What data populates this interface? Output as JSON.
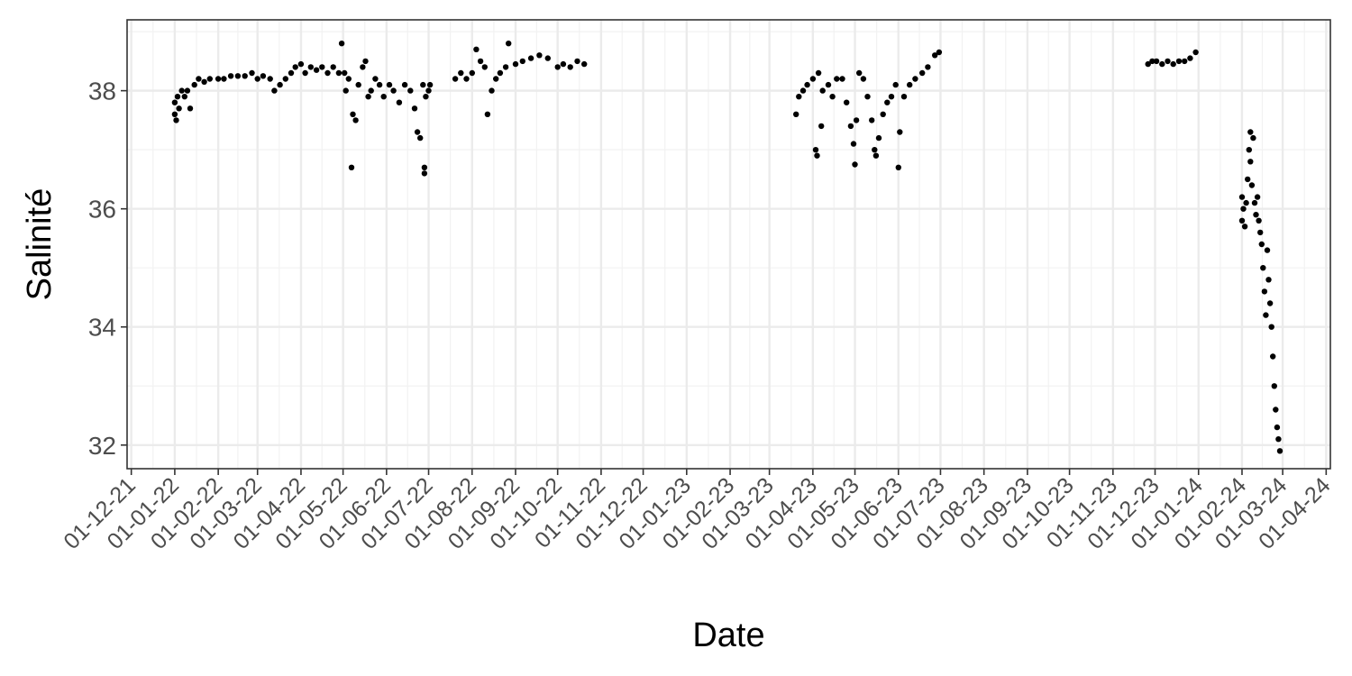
{
  "chart_data": {
    "type": "scatter",
    "title": "",
    "xlabel": "Date",
    "ylabel": "Salinité",
    "x_axis_kind": "date",
    "xlim": [
      "2021-11-28",
      "2024-04-04"
    ],
    "ylim": [
      31.6,
      39.2
    ],
    "y_ticks": [
      32,
      34,
      36,
      38
    ],
    "x_ticks": [
      {
        "date": "2021-12-01",
        "label": "01-12-21"
      },
      {
        "date": "2022-01-01",
        "label": "01-01-22"
      },
      {
        "date": "2022-02-01",
        "label": "01-02-22"
      },
      {
        "date": "2022-03-01",
        "label": "01-03-22"
      },
      {
        "date": "2022-04-01",
        "label": "01-04-22"
      },
      {
        "date": "2022-05-01",
        "label": "01-05-22"
      },
      {
        "date": "2022-06-01",
        "label": "01-06-22"
      },
      {
        "date": "2022-07-01",
        "label": "01-07-22"
      },
      {
        "date": "2022-08-01",
        "label": "01-08-22"
      },
      {
        "date": "2022-09-01",
        "label": "01-09-22"
      },
      {
        "date": "2022-10-01",
        "label": "01-10-22"
      },
      {
        "date": "2022-11-01",
        "label": "01-11-22"
      },
      {
        "date": "2022-12-01",
        "label": "01-12-22"
      },
      {
        "date": "2023-01-01",
        "label": "01-01-23"
      },
      {
        "date": "2023-02-01",
        "label": "01-02-23"
      },
      {
        "date": "2023-03-01",
        "label": "01-03-23"
      },
      {
        "date": "2023-04-01",
        "label": "01-04-23"
      },
      {
        "date": "2023-05-01",
        "label": "01-05-23"
      },
      {
        "date": "2023-06-01",
        "label": "01-06-23"
      },
      {
        "date": "2023-07-01",
        "label": "01-07-23"
      },
      {
        "date": "2023-08-01",
        "label": "01-08-23"
      },
      {
        "date": "2023-09-01",
        "label": "01-09-23"
      },
      {
        "date": "2023-10-01",
        "label": "01-10-23"
      },
      {
        "date": "2023-11-01",
        "label": "01-11-23"
      },
      {
        "date": "2023-12-01",
        "label": "01-12-23"
      },
      {
        "date": "2024-01-01",
        "label": "01-01-24"
      },
      {
        "date": "2024-02-01",
        "label": "01-02-24"
      },
      {
        "date": "2024-03-01",
        "label": "01-03-24"
      },
      {
        "date": "2024-04-01",
        "label": "01-04-24"
      }
    ],
    "grid": true,
    "legend": "none",
    "marker_color": "#000000",
    "series": [
      {
        "points": [
          {
            "x": "2022-01-01",
            "y": 37.6
          },
          {
            "x": "2022-01-01",
            "y": 37.8
          },
          {
            "x": "2022-01-02",
            "y": 37.5
          },
          {
            "x": "2022-01-03",
            "y": 37.9
          },
          {
            "x": "2022-01-04",
            "y": 37.7
          },
          {
            "x": "2022-01-06",
            "y": 38.0
          },
          {
            "x": "2022-01-08",
            "y": 37.9
          },
          {
            "x": "2022-01-10",
            "y": 38.0
          },
          {
            "x": "2022-01-12",
            "y": 37.7
          },
          {
            "x": "2022-01-15",
            "y": 38.1
          },
          {
            "x": "2022-01-18",
            "y": 38.2
          },
          {
            "x": "2022-01-22",
            "y": 38.15
          },
          {
            "x": "2022-01-26",
            "y": 38.2
          },
          {
            "x": "2022-02-01",
            "y": 38.2
          },
          {
            "x": "2022-02-05",
            "y": 38.2
          },
          {
            "x": "2022-02-10",
            "y": 38.25
          },
          {
            "x": "2022-02-15",
            "y": 38.25
          },
          {
            "x": "2022-02-20",
            "y": 38.25
          },
          {
            "x": "2022-02-25",
            "y": 38.3
          },
          {
            "x": "2022-03-01",
            "y": 38.2
          },
          {
            "x": "2022-03-05",
            "y": 38.25
          },
          {
            "x": "2022-03-10",
            "y": 38.2
          },
          {
            "x": "2022-03-13",
            "y": 38.0
          },
          {
            "x": "2022-03-17",
            "y": 38.1
          },
          {
            "x": "2022-03-21",
            "y": 38.2
          },
          {
            "x": "2022-03-25",
            "y": 38.3
          },
          {
            "x": "2022-03-28",
            "y": 38.4
          },
          {
            "x": "2022-04-01",
            "y": 38.45
          },
          {
            "x": "2022-04-04",
            "y": 38.3
          },
          {
            "x": "2022-04-08",
            "y": 38.4
          },
          {
            "x": "2022-04-12",
            "y": 38.35
          },
          {
            "x": "2022-04-16",
            "y": 38.4
          },
          {
            "x": "2022-04-20",
            "y": 38.3
          },
          {
            "x": "2022-04-24",
            "y": 38.4
          },
          {
            "x": "2022-04-28",
            "y": 38.3
          },
          {
            "x": "2022-04-30",
            "y": 38.8
          },
          {
            "x": "2022-05-02",
            "y": 38.3
          },
          {
            "x": "2022-05-03",
            "y": 38.0
          },
          {
            "x": "2022-05-05",
            "y": 38.2
          },
          {
            "x": "2022-05-07",
            "y": 36.7
          },
          {
            "x": "2022-05-08",
            "y": 37.6
          },
          {
            "x": "2022-05-10",
            "y": 37.5
          },
          {
            "x": "2022-05-12",
            "y": 38.1
          },
          {
            "x": "2022-05-15",
            "y": 38.4
          },
          {
            "x": "2022-05-17",
            "y": 38.5
          },
          {
            "x": "2022-05-19",
            "y": 37.9
          },
          {
            "x": "2022-05-21",
            "y": 38.0
          },
          {
            "x": "2022-05-24",
            "y": 38.2
          },
          {
            "x": "2022-05-27",
            "y": 38.1
          },
          {
            "x": "2022-05-30",
            "y": 37.9
          },
          {
            "x": "2022-06-03",
            "y": 38.1
          },
          {
            "x": "2022-06-06",
            "y": 38.0
          },
          {
            "x": "2022-06-10",
            "y": 37.8
          },
          {
            "x": "2022-06-14",
            "y": 38.1
          },
          {
            "x": "2022-06-18",
            "y": 38.0
          },
          {
            "x": "2022-06-21",
            "y": 37.7
          },
          {
            "x": "2022-06-23",
            "y": 37.3
          },
          {
            "x": "2022-06-25",
            "y": 37.2
          },
          {
            "x": "2022-06-27",
            "y": 38.1
          },
          {
            "x": "2022-06-28",
            "y": 36.7
          },
          {
            "x": "2022-06-28",
            "y": 36.6
          },
          {
            "x": "2022-06-29",
            "y": 37.9
          },
          {
            "x": "2022-07-01",
            "y": 38.0
          },
          {
            "x": "2022-07-02",
            "y": 38.1
          },
          {
            "x": "2022-07-20",
            "y": 38.2
          },
          {
            "x": "2022-07-24",
            "y": 38.3
          },
          {
            "x": "2022-07-28",
            "y": 38.2
          },
          {
            "x": "2022-08-01",
            "y": 38.3
          },
          {
            "x": "2022-08-04",
            "y": 38.7
          },
          {
            "x": "2022-08-07",
            "y": 38.5
          },
          {
            "x": "2022-08-10",
            "y": 38.4
          },
          {
            "x": "2022-08-12",
            "y": 37.6
          },
          {
            "x": "2022-08-15",
            "y": 38.0
          },
          {
            "x": "2022-08-18",
            "y": 38.2
          },
          {
            "x": "2022-08-21",
            "y": 38.3
          },
          {
            "x": "2022-08-25",
            "y": 38.4
          },
          {
            "x": "2022-08-27",
            "y": 38.8
          },
          {
            "x": "2022-09-01",
            "y": 38.45
          },
          {
            "x": "2022-09-06",
            "y": 38.5
          },
          {
            "x": "2022-09-12",
            "y": 38.55
          },
          {
            "x": "2022-09-18",
            "y": 38.6
          },
          {
            "x": "2022-09-24",
            "y": 38.55
          },
          {
            "x": "2022-10-01",
            "y": 38.4
          },
          {
            "x": "2022-10-05",
            "y": 38.45
          },
          {
            "x": "2022-10-10",
            "y": 38.4
          },
          {
            "x": "2022-10-15",
            "y": 38.5
          },
          {
            "x": "2022-10-20",
            "y": 38.45
          },
          {
            "x": "2023-03-20",
            "y": 37.6
          },
          {
            "x": "2023-03-22",
            "y": 37.9
          },
          {
            "x": "2023-03-25",
            "y": 38.0
          },
          {
            "x": "2023-03-28",
            "y": 38.1
          },
          {
            "x": "2023-04-01",
            "y": 38.2
          },
          {
            "x": "2023-04-03",
            "y": 37.0
          },
          {
            "x": "2023-04-04",
            "y": 36.9
          },
          {
            "x": "2023-04-05",
            "y": 38.3
          },
          {
            "x": "2023-04-07",
            "y": 37.4
          },
          {
            "x": "2023-04-08",
            "y": 38.0
          },
          {
            "x": "2023-04-12",
            "y": 38.1
          },
          {
            "x": "2023-04-15",
            "y": 37.9
          },
          {
            "x": "2023-04-18",
            "y": 38.2
          },
          {
            "x": "2023-04-22",
            "y": 38.2
          },
          {
            "x": "2023-04-25",
            "y": 37.8
          },
          {
            "x": "2023-04-28",
            "y": 37.4
          },
          {
            "x": "2023-04-30",
            "y": 37.1
          },
          {
            "x": "2023-05-01",
            "y": 36.75
          },
          {
            "x": "2023-05-02",
            "y": 37.5
          },
          {
            "x": "2023-05-04",
            "y": 38.3
          },
          {
            "x": "2023-05-07",
            "y": 38.2
          },
          {
            "x": "2023-05-10",
            "y": 37.9
          },
          {
            "x": "2023-05-13",
            "y": 37.5
          },
          {
            "x": "2023-05-15",
            "y": 37.0
          },
          {
            "x": "2023-05-16",
            "y": 36.9
          },
          {
            "x": "2023-05-18",
            "y": 37.2
          },
          {
            "x": "2023-05-21",
            "y": 37.6
          },
          {
            "x": "2023-05-24",
            "y": 37.8
          },
          {
            "x": "2023-05-27",
            "y": 37.9
          },
          {
            "x": "2023-05-30",
            "y": 38.1
          },
          {
            "x": "2023-06-01",
            "y": 36.7
          },
          {
            "x": "2023-06-02",
            "y": 37.3
          },
          {
            "x": "2023-06-05",
            "y": 37.9
          },
          {
            "x": "2023-06-09",
            "y": 38.1
          },
          {
            "x": "2023-06-13",
            "y": 38.2
          },
          {
            "x": "2023-06-18",
            "y": 38.3
          },
          {
            "x": "2023-06-22",
            "y": 38.4
          },
          {
            "x": "2023-06-27",
            "y": 38.6
          },
          {
            "x": "2023-06-30",
            "y": 38.65
          },
          {
            "x": "2023-11-26",
            "y": 38.45
          },
          {
            "x": "2023-11-29",
            "y": 38.5
          },
          {
            "x": "2023-12-02",
            "y": 38.5
          },
          {
            "x": "2023-12-06",
            "y": 38.45
          },
          {
            "x": "2023-12-10",
            "y": 38.5
          },
          {
            "x": "2023-12-14",
            "y": 38.45
          },
          {
            "x": "2023-12-18",
            "y": 38.5
          },
          {
            "x": "2023-12-22",
            "y": 38.5
          },
          {
            "x": "2023-12-26",
            "y": 38.55
          },
          {
            "x": "2023-12-30",
            "y": 38.65
          },
          {
            "x": "2024-02-01",
            "y": 36.2
          },
          {
            "x": "2024-02-01",
            "y": 35.8
          },
          {
            "x": "2024-02-02",
            "y": 36.0
          },
          {
            "x": "2024-02-03",
            "y": 35.7
          },
          {
            "x": "2024-02-04",
            "y": 36.1
          },
          {
            "x": "2024-02-05",
            "y": 36.5
          },
          {
            "x": "2024-02-06",
            "y": 37.0
          },
          {
            "x": "2024-02-07",
            "y": 37.3
          },
          {
            "x": "2024-02-07",
            "y": 36.8
          },
          {
            "x": "2024-02-08",
            "y": 36.4
          },
          {
            "x": "2024-02-09",
            "y": 37.2
          },
          {
            "x": "2024-02-10",
            "y": 36.1
          },
          {
            "x": "2024-02-11",
            "y": 35.9
          },
          {
            "x": "2024-02-12",
            "y": 36.2
          },
          {
            "x": "2024-02-13",
            "y": 35.8
          },
          {
            "x": "2024-02-14",
            "y": 35.6
          },
          {
            "x": "2024-02-15",
            "y": 35.4
          },
          {
            "x": "2024-02-16",
            "y": 35.0
          },
          {
            "x": "2024-02-17",
            "y": 34.6
          },
          {
            "x": "2024-02-18",
            "y": 34.2
          },
          {
            "x": "2024-02-19",
            "y": 35.3
          },
          {
            "x": "2024-02-20",
            "y": 34.8
          },
          {
            "x": "2024-02-21",
            "y": 34.4
          },
          {
            "x": "2024-02-22",
            "y": 34.0
          },
          {
            "x": "2024-02-23",
            "y": 33.5
          },
          {
            "x": "2024-02-24",
            "y": 33.0
          },
          {
            "x": "2024-02-25",
            "y": 32.6
          },
          {
            "x": "2024-02-26",
            "y": 32.3
          },
          {
            "x": "2024-02-27",
            "y": 32.1
          },
          {
            "x": "2024-02-28",
            "y": 31.9
          }
        ]
      }
    ]
  }
}
